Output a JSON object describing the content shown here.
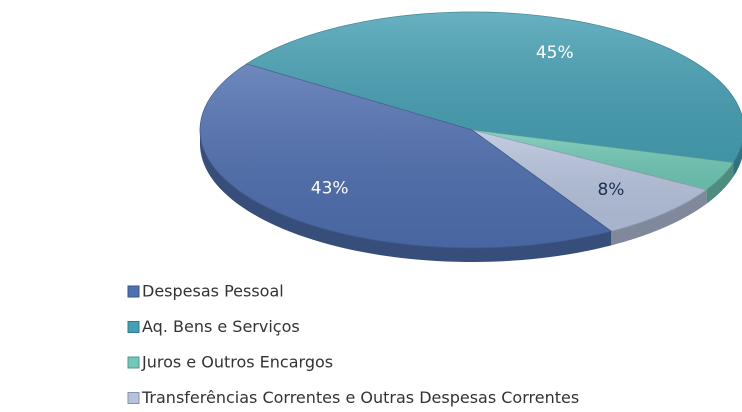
{
  "chart_data": {
    "type": "pie",
    "categories": [
      "Despesas Pessoal",
      "Aq. Bens e Serviços",
      "Juros e Outros Encargos",
      "Transferências Correntes e Outras Despesas Correntes"
    ],
    "values": [
      43,
      45,
      4,
      8
    ],
    "value_labels": [
      "43%",
      "45%",
      null,
      "8%"
    ],
    "colors": [
      "#4f6fb0",
      "#46a0b4",
      "#70c8b6",
      "#b6c3dd"
    ],
    "legend": "bottom-left"
  }
}
